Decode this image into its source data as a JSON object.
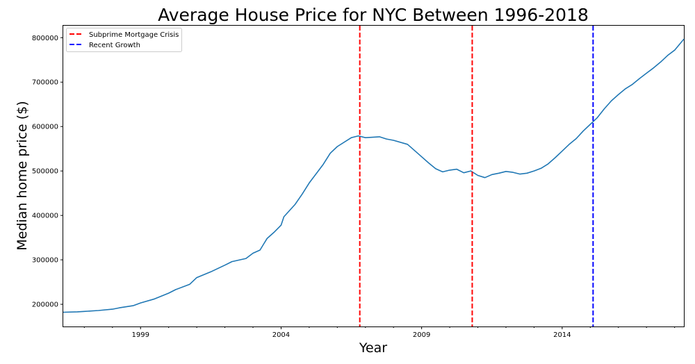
{
  "chart_data": {
    "type": "line",
    "title": "Average House Price for NYC Between 1996-2018",
    "xlabel": "Year",
    "ylabel": "Median home price ($)",
    "xlim": [
      1996.25,
      2018.33
    ],
    "ylim": [
      150000,
      827000
    ],
    "x_ticks": [
      1999,
      2004,
      2009,
      2014
    ],
    "x_tick_labels": [
      "1999",
      "2004",
      "2009",
      "2014"
    ],
    "y_ticks": [
      200000,
      300000,
      400000,
      500000,
      600000,
      700000,
      800000
    ],
    "y_tick_labels": [
      "200000",
      "300000",
      "400000",
      "500000",
      "600000",
      "700000",
      "800000"
    ],
    "grid": false,
    "legend_position": "top-left",
    "series": [
      {
        "color": "#1f77b4",
        "points": [
          [
            1996.25,
            182000
          ],
          [
            1996.75,
            183000
          ],
          [
            1997.0,
            184000
          ],
          [
            1997.5,
            186000
          ],
          [
            1998.0,
            189000
          ],
          [
            1998.25,
            192000
          ],
          [
            1998.75,
            197000
          ],
          [
            1999.0,
            203000
          ],
          [
            1999.5,
            212000
          ],
          [
            2000.0,
            225000
          ],
          [
            2000.25,
            233000
          ],
          [
            2000.75,
            245000
          ],
          [
            2001.0,
            260000
          ],
          [
            2001.5,
            273000
          ],
          [
            2002.0,
            288000
          ],
          [
            2002.25,
            296000
          ],
          [
            2002.75,
            303000
          ],
          [
            2003.0,
            315000
          ],
          [
            2003.25,
            322000
          ],
          [
            2003.5,
            348000
          ],
          [
            2003.75,
            362000
          ],
          [
            2004.0,
            378000
          ],
          [
            2004.1,
            397000
          ],
          [
            2004.5,
            425000
          ],
          [
            2004.75,
            448000
          ],
          [
            2005.0,
            473000
          ],
          [
            2005.5,
            515000
          ],
          [
            2005.75,
            540000
          ],
          [
            2006.0,
            555000
          ],
          [
            2006.5,
            575000
          ],
          [
            2006.75,
            579000
          ],
          [
            2007.0,
            575000
          ],
          [
            2007.5,
            577000
          ],
          [
            2007.75,
            572000
          ],
          [
            2008.0,
            569000
          ],
          [
            2008.5,
            560000
          ],
          [
            2008.75,
            546000
          ],
          [
            2009.0,
            532000
          ],
          [
            2009.25,
            518000
          ],
          [
            2009.5,
            505000
          ],
          [
            2009.75,
            498000
          ],
          [
            2010.0,
            502000
          ],
          [
            2010.25,
            504000
          ],
          [
            2010.5,
            496000
          ],
          [
            2010.75,
            500000
          ],
          [
            2011.0,
            490000
          ],
          [
            2011.25,
            485000
          ],
          [
            2011.5,
            492000
          ],
          [
            2011.75,
            495000
          ],
          [
            2012.0,
            499000
          ],
          [
            2012.25,
            497000
          ],
          [
            2012.5,
            493000
          ],
          [
            2012.75,
            495000
          ],
          [
            2013.0,
            500000
          ],
          [
            2013.25,
            506000
          ],
          [
            2013.5,
            516000
          ],
          [
            2013.75,
            530000
          ],
          [
            2014.0,
            545000
          ],
          [
            2014.25,
            560000
          ],
          [
            2014.5,
            573000
          ],
          [
            2014.75,
            590000
          ],
          [
            2015.0,
            605000
          ],
          [
            2015.25,
            620000
          ],
          [
            2015.5,
            640000
          ],
          [
            2015.75,
            658000
          ],
          [
            2016.0,
            672000
          ],
          [
            2016.25,
            685000
          ],
          [
            2016.5,
            695000
          ],
          [
            2016.75,
            708000
          ],
          [
            2017.0,
            720000
          ],
          [
            2017.25,
            732000
          ],
          [
            2017.5,
            745000
          ],
          [
            2017.75,
            760000
          ],
          [
            2018.0,
            772000
          ],
          [
            2018.33,
            797000
          ]
        ]
      }
    ],
    "vertical_lines": [
      {
        "x": 2006.8,
        "color": "#ff0000",
        "style": "dashed"
      },
      {
        "x": 2010.8,
        "color": "#ff0000",
        "style": "dashed"
      },
      {
        "x": 2015.1,
        "color": "#0000ff",
        "style": "dashed"
      }
    ],
    "legend": [
      {
        "label": "Subprime Mortgage Crisis",
        "color": "#ff0000"
      },
      {
        "label": "Recent Growth",
        "color": "#0000ff"
      }
    ]
  }
}
